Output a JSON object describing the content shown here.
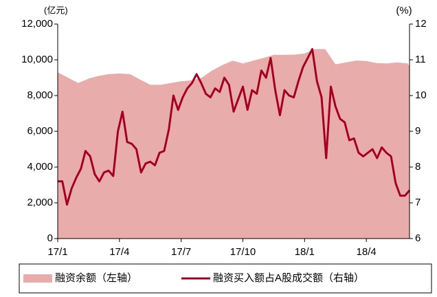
{
  "chart_data": {
    "type": "area_line",
    "y_unit": "(亿元)",
    "y2_unit": "(%)",
    "xlim": [
      0,
      17.1
    ],
    "xticks": [
      {
        "value": 0,
        "label": "17/1"
      },
      {
        "value": 3,
        "label": "17/4"
      },
      {
        "value": 6,
        "label": "17/7"
      },
      {
        "value": 9,
        "label": "17/10"
      },
      {
        "value": 12,
        "label": "18/1"
      },
      {
        "value": 15,
        "label": "18/4"
      }
    ],
    "ylim": [
      0,
      12000
    ],
    "yticks": [
      0,
      {
        "value": 2000,
        "label": "2,000"
      },
      {
        "value": 4000,
        "label": "4,000"
      },
      {
        "value": 6000,
        "label": "6,000"
      },
      {
        "value": 8000,
        "label": "8,000"
      },
      {
        "value": 10000,
        "label": "10,000"
      },
      {
        "value": 12000,
        "label": "12,000"
      }
    ],
    "y2lim": [
      6,
      12
    ],
    "y2ticks": [
      6,
      7,
      8,
      9,
      10,
      11,
      12
    ],
    "series": [
      {
        "name": "融资余额（左轴）",
        "kind": "area",
        "color": "#e8acab",
        "x": [
          0,
          0.5,
          1,
          1.5,
          2,
          2.5,
          3,
          3.5,
          4,
          4.5,
          5,
          5.5,
          6,
          6.5,
          7,
          7.5,
          8,
          8.5,
          9,
          9.5,
          10,
          10.5,
          11,
          11.5,
          12,
          12.5,
          13,
          13.5,
          14,
          14.5,
          15,
          15.5,
          16,
          16.5,
          17,
          17.1
        ],
        "values": [
          9300,
          9000,
          8700,
          8950,
          9100,
          9200,
          9230,
          9200,
          8900,
          8600,
          8600,
          8700,
          8800,
          8850,
          9000,
          9400,
          9700,
          9950,
          9800,
          9950,
          10100,
          10280,
          10280,
          10290,
          10350,
          10600,
          10600,
          9750,
          9850,
          9960,
          9930,
          9820,
          9800,
          9850,
          9800,
          9650
        ]
      },
      {
        "name": "融资买入额占A股成交额（右轴）",
        "kind": "line",
        "axis": "y2",
        "color": "#a6001f",
        "x": [
          0,
          0.225,
          0.45,
          0.675,
          0.9,
          1.125,
          1.35,
          1.575,
          1.8,
          2.025,
          2.25,
          2.475,
          2.7,
          2.925,
          3.15,
          3.375,
          3.6,
          3.825,
          4.05,
          4.275,
          4.5,
          4.725,
          4.95,
          5.175,
          5.4,
          5.625,
          5.85,
          6.075,
          6.3,
          6.525,
          6.75,
          6.975,
          7.2,
          7.425,
          7.65,
          7.875,
          8.1,
          8.325,
          8.55,
          8.775,
          9,
          9.225,
          9.45,
          9.675,
          9.9,
          10.125,
          10.35,
          10.575,
          10.8,
          11.025,
          11.25,
          11.475,
          11.7,
          11.925,
          12.15,
          12.375,
          12.6,
          12.825,
          13.05,
          13.275,
          13.5,
          13.725,
          13.95,
          14.175,
          14.4,
          14.625,
          14.85,
          15.075,
          15.3,
          15.525,
          15.75,
          15.975,
          16.2,
          16.425,
          16.65,
          16.875,
          17.1
        ],
        "values": [
          7.6,
          7.6,
          6.95,
          7.4,
          7.7,
          7.95,
          8.45,
          8.3,
          7.8,
          7.6,
          7.85,
          7.9,
          7.75,
          9.0,
          9.55,
          8.7,
          8.65,
          8.5,
          7.85,
          8.1,
          8.15,
          8.05,
          8.4,
          8.45,
          9.05,
          10.0,
          9.6,
          9.95,
          10.2,
          10.35,
          10.6,
          10.35,
          10.05,
          9.95,
          10.2,
          10.1,
          10.5,
          10.3,
          9.55,
          9.9,
          10.25,
          9.6,
          10.15,
          10.05,
          10.7,
          10.5,
          11.05,
          10.15,
          9.45,
          10.15,
          10.0,
          9.95,
          10.4,
          10.8,
          11.05,
          11.3,
          10.4,
          9.95,
          8.25,
          10.25,
          9.7,
          9.35,
          9.25,
          8.75,
          8.8,
          8.4,
          8.3,
          8.4,
          8.5,
          8.25,
          8.55,
          8.4,
          8.3,
          7.55,
          7.2,
          7.2,
          7.35
        ]
      }
    ]
  }
}
